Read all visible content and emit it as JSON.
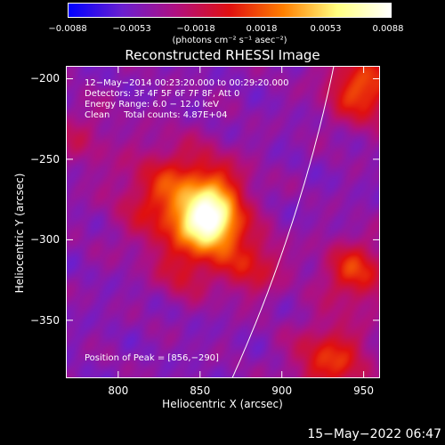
{
  "chart_data": {
    "type": "heatmap",
    "title": "Reconstructed RHESSI Image",
    "xlabel": "Heliocentric X (arcsec)",
    "ylabel": "Heliocentric Y (arcsec)",
    "xlim": [
      768,
      960
    ],
    "ylim": [
      -386,
      -192
    ],
    "x_ticks": [
      800,
      850,
      900,
      950
    ],
    "y_ticks": [
      -200,
      -250,
      -300,
      -350
    ],
    "x_tick_labels": [
      "800",
      "850",
      "900",
      "950"
    ],
    "y_tick_labels": [
      "−200",
      "−250",
      "−300",
      "−350"
    ],
    "colorbar": {
      "ticks": [
        "−0.0088",
        "−0.0053",
        "−0.0018",
        "0.0018",
        "0.0053",
        "0.0088"
      ],
      "units": "(photons cm⁻² s⁻¹ asec⁻²)",
      "range": [
        -0.0088,
        0.0088
      ],
      "colors": [
        "#0000ff",
        "#6a1fd0",
        "#b01080",
        "#e01010",
        "#ff7f00",
        "#ffff80",
        "#ffffff"
      ]
    },
    "annotations": [
      "12−May−2014 00:23:20.000 to 00:29:20.000",
      "Detectors: 3F 4F 5F 6F 7F 8F, Att 0",
      "Energy Range: 6.0 − 12.0 keV",
      "Clean     Total counts: 4.87E+04"
    ],
    "peak_label": "Position of Peak = [856,−290]",
    "peak": [
      856,
      -290
    ]
  },
  "footer": {
    "timestamp": "15−May−2022 06:47"
  }
}
